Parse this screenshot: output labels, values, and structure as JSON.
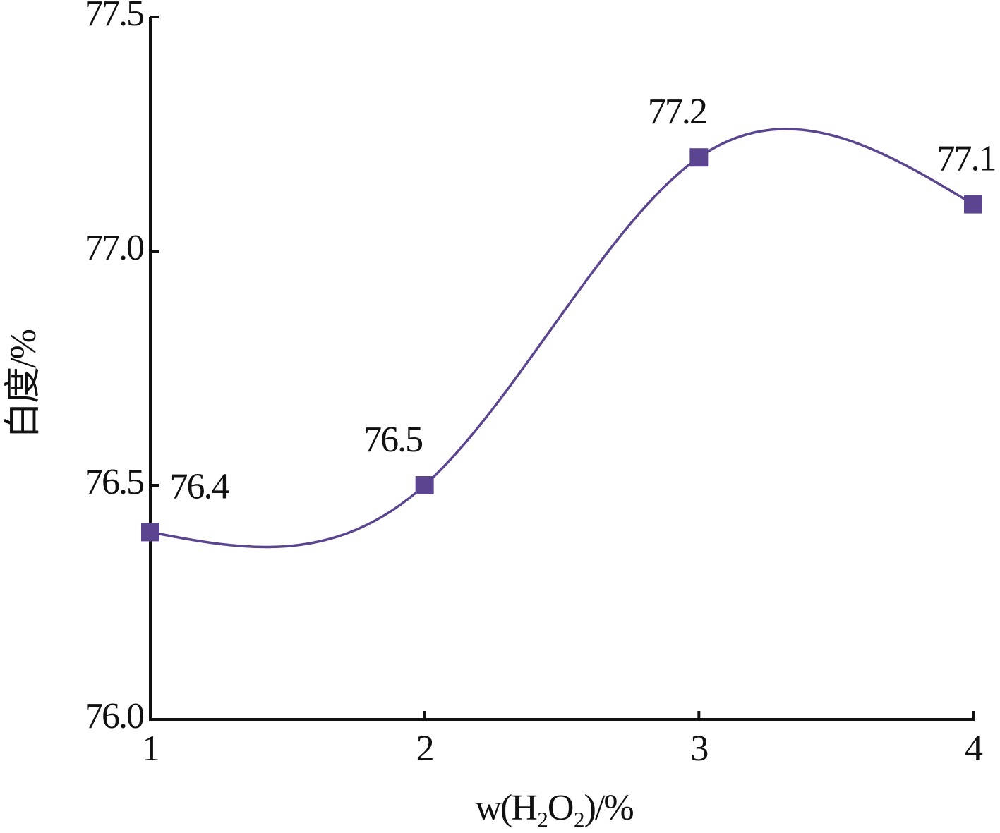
{
  "chart_data": {
    "type": "line",
    "x_label": "w(H₂O₂)/%",
    "y_label": "白度/%",
    "x": [
      1,
      2,
      3,
      4
    ],
    "series": [
      {
        "color": "#5b4590",
        "values": [
          76.4,
          76.5,
          77.2,
          77.1
        ]
      }
    ],
    "xlim": [
      1,
      4
    ],
    "xticks": [
      1,
      2,
      3,
      4
    ],
    "ylim": [
      76.0,
      77.5
    ],
    "yticks": [
      {
        "value": 76.0,
        "label": "76.0"
      },
      76.5,
      {
        "value": 77.0,
        "label": "77.0"
      },
      77.5
    ],
    "smooth": true,
    "grid": false
  }
}
